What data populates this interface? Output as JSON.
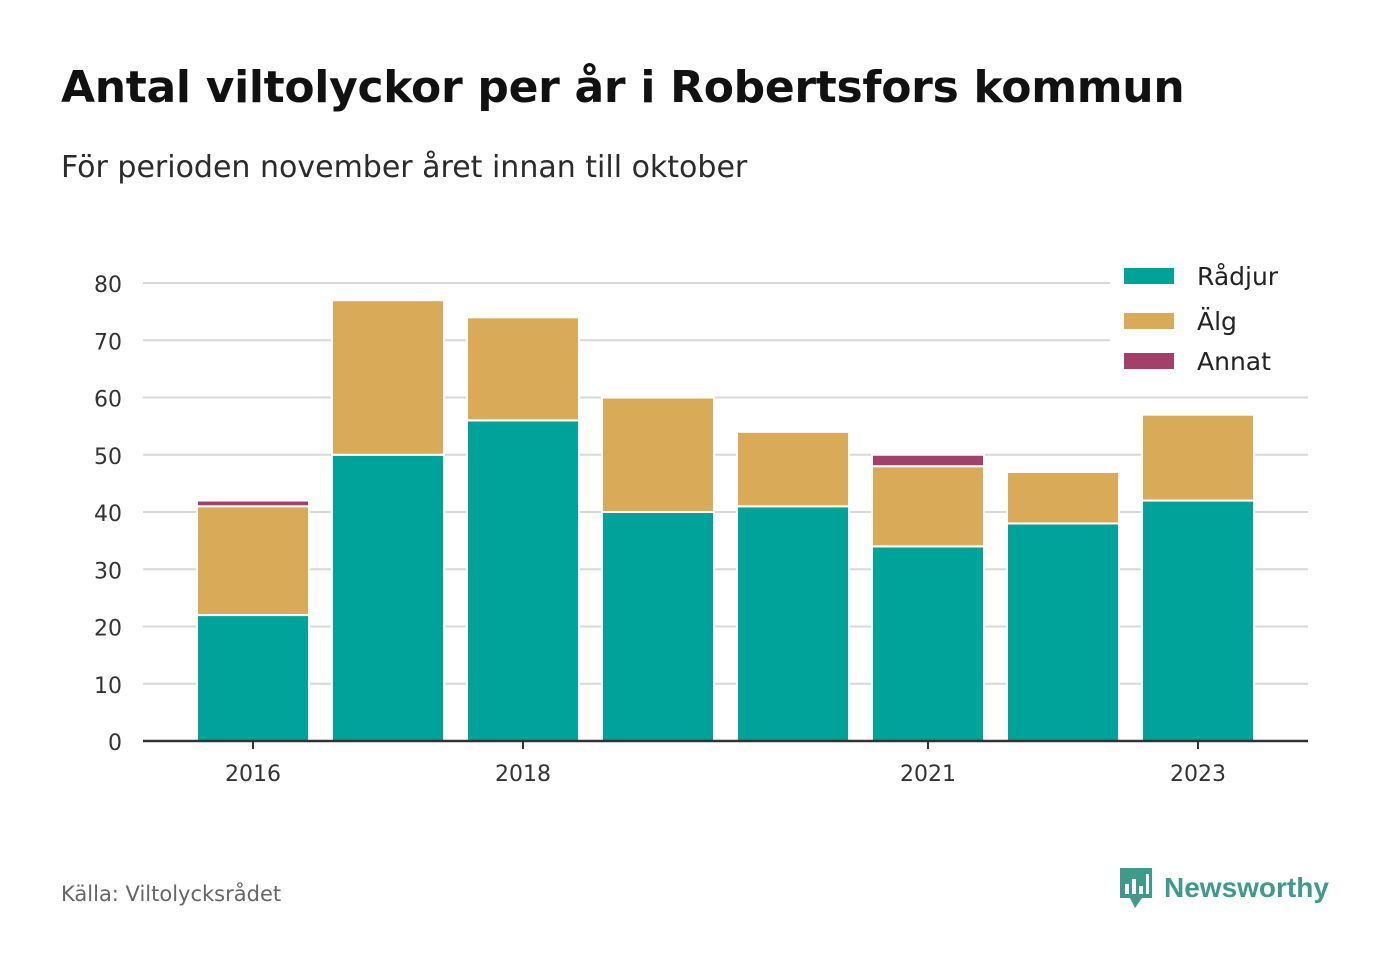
{
  "title": "Antal viltolyckor per år i Robertsfors kommun",
  "subtitle": "För perioden november året innan till oktober",
  "source": "Källa: Viltolycksrådet",
  "brand": "Newsworthy",
  "colors": {
    "radjur": "#00a39a",
    "alg": "#d9ab59",
    "annat": "#a2406a",
    "grid": "#d8d8d8",
    "axis": "#333333",
    "brand": "#3f9a8c"
  },
  "chart_data": {
    "type": "bar",
    "stacked": true,
    "categories": [
      "2016",
      "2017",
      "2018",
      "2019",
      "2020",
      "2021",
      "2022",
      "2023"
    ],
    "xticks": [
      "2016",
      "2018",
      "2021",
      "2023"
    ],
    "yticks": [
      0,
      10,
      20,
      30,
      40,
      50,
      60,
      70,
      80
    ],
    "ylim": [
      0,
      80
    ],
    "grid": true,
    "legend": "top-right",
    "series": [
      {
        "name": "Rådjur",
        "color": "#00a39a",
        "values": [
          22,
          50,
          56,
          40,
          41,
          34,
          38,
          42
        ]
      },
      {
        "name": "Älg",
        "color": "#d9ab59",
        "values": [
          19,
          27,
          18,
          20,
          13,
          14,
          9,
          15
        ]
      },
      {
        "name": "Annat",
        "color": "#a2406a",
        "values": [
          1,
          0,
          0,
          0,
          0,
          2,
          0,
          0
        ]
      }
    ]
  }
}
